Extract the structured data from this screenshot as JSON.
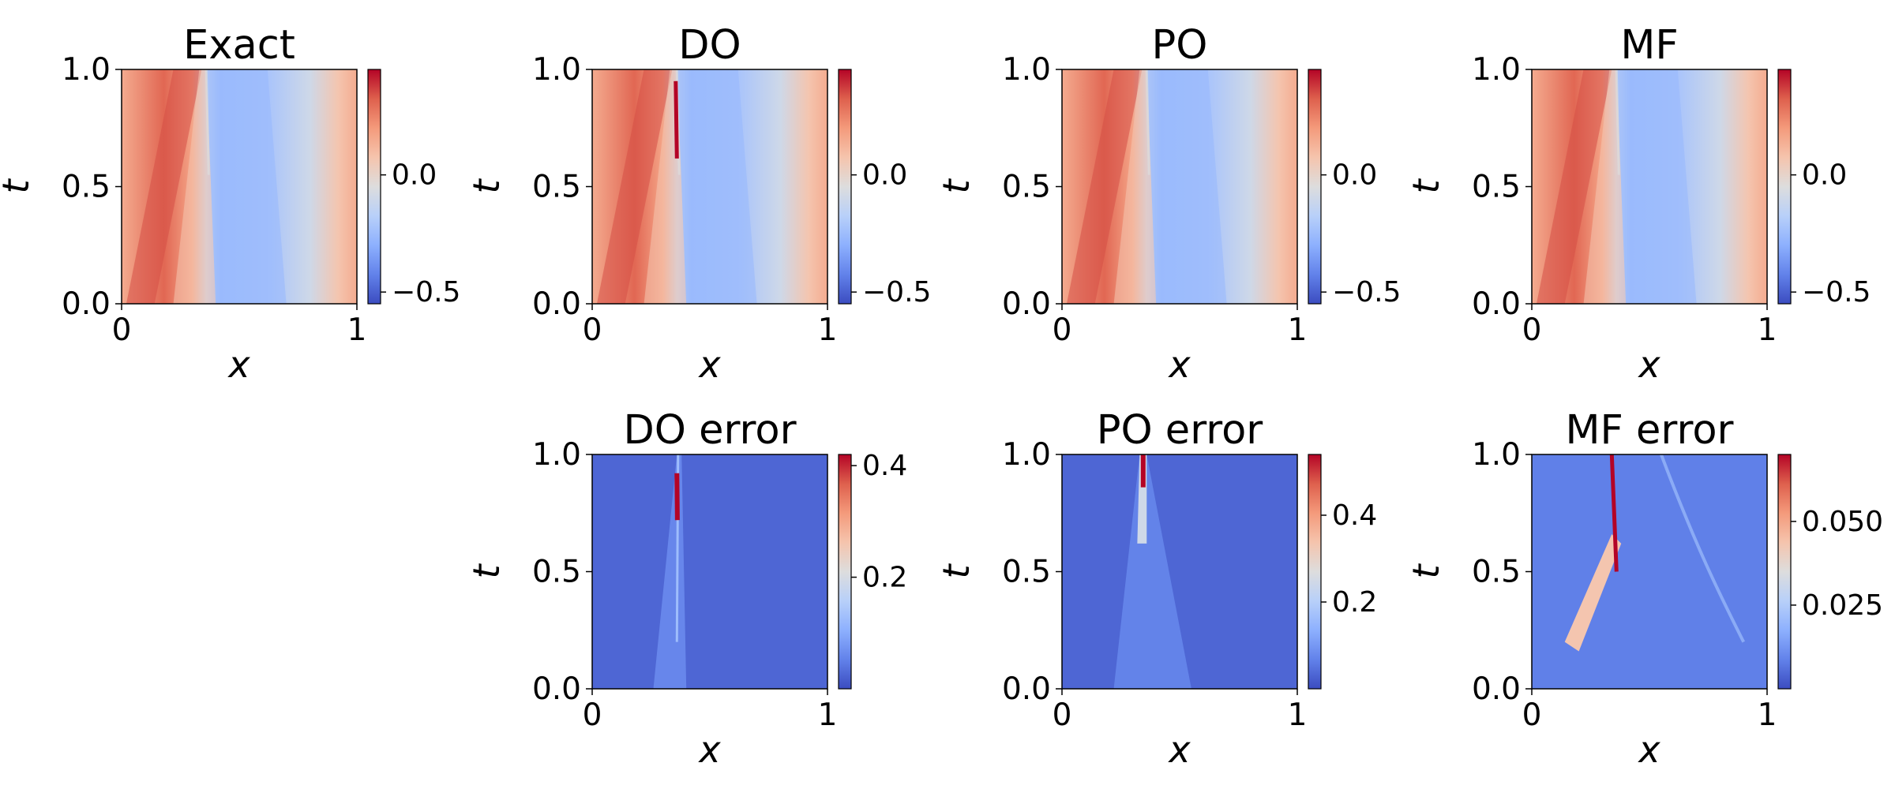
{
  "chart_data": [
    {
      "type": "heatmap",
      "title": "Exact",
      "field": "solution",
      "xlabel": "x",
      "ylabel": "t",
      "xlim": [
        0,
        1
      ],
      "ylim": [
        0,
        1
      ],
      "x_ticks": [
        "0",
        "1"
      ],
      "y_ticks": [
        "0.0",
        "0.5",
        "1.0"
      ],
      "colormap": "coolwarm",
      "colorbar": {
        "range": [
          -0.55,
          0.45
        ],
        "ticks": [
          {
            "value": 0.0,
            "label": "0.0"
          },
          {
            "value": -0.5,
            "label": "−0.5"
          }
        ]
      }
    },
    {
      "type": "heatmap",
      "title": "DO",
      "field": "solution",
      "xlabel": "x",
      "ylabel": "t",
      "xlim": [
        0,
        1
      ],
      "ylim": [
        0,
        1
      ],
      "x_ticks": [
        "0",
        "1"
      ],
      "y_ticks": [
        "0.0",
        "0.5",
        "1.0"
      ],
      "colormap": "coolwarm",
      "colorbar": {
        "range": [
          -0.55,
          0.45
        ],
        "ticks": [
          {
            "value": 0.0,
            "label": "0.0"
          },
          {
            "value": -0.5,
            "label": "−0.5"
          }
        ]
      }
    },
    {
      "type": "heatmap",
      "title": "PO",
      "field": "solution",
      "xlabel": "x",
      "ylabel": "t",
      "xlim": [
        0,
        1
      ],
      "ylim": [
        0,
        1
      ],
      "x_ticks": [
        "0",
        "1"
      ],
      "y_ticks": [
        "0.0",
        "0.5",
        "1.0"
      ],
      "colormap": "coolwarm",
      "colorbar": {
        "range": [
          -0.55,
          0.45
        ],
        "ticks": [
          {
            "value": 0.0,
            "label": "0.0"
          },
          {
            "value": -0.5,
            "label": "−0.5"
          }
        ]
      }
    },
    {
      "type": "heatmap",
      "title": "MF",
      "field": "solution",
      "xlabel": "x",
      "ylabel": "t",
      "xlim": [
        0,
        1
      ],
      "ylim": [
        0,
        1
      ],
      "x_ticks": [
        "0",
        "1"
      ],
      "y_ticks": [
        "0.0",
        "0.5",
        "1.0"
      ],
      "colormap": "coolwarm",
      "colorbar": {
        "range": [
          -0.55,
          0.45
        ],
        "ticks": [
          {
            "value": 0.0,
            "label": "0.0"
          },
          {
            "value": -0.5,
            "label": "−0.5"
          }
        ]
      }
    },
    {
      "type": "heatmap",
      "title": "DO error",
      "field": "error",
      "xlabel": "x",
      "ylabel": "t",
      "xlim": [
        0,
        1
      ],
      "ylim": [
        0,
        1
      ],
      "x_ticks": [
        "0",
        "1"
      ],
      "y_ticks": [
        "0.0",
        "0.5",
        "1.0"
      ],
      "colormap": "coolwarm",
      "colorbar": {
        "range": [
          0.0,
          0.42
        ],
        "ticks": [
          {
            "value": 0.4,
            "label": "0.4"
          },
          {
            "value": 0.2,
            "label": "0.2"
          }
        ]
      }
    },
    {
      "type": "heatmap",
      "title": "PO error",
      "field": "error",
      "xlabel": "x",
      "ylabel": "t",
      "xlim": [
        0,
        1
      ],
      "ylim": [
        0,
        1
      ],
      "x_ticks": [
        "0",
        "1"
      ],
      "y_ticks": [
        "0.0",
        "0.5",
        "1.0"
      ],
      "colormap": "coolwarm",
      "colorbar": {
        "range": [
          0.0,
          0.54
        ],
        "ticks": [
          {
            "value": 0.4,
            "label": "0.4"
          },
          {
            "value": 0.2,
            "label": "0.2"
          }
        ]
      }
    },
    {
      "type": "heatmap",
      "title": "MF error",
      "field": "error",
      "xlabel": "x",
      "ylabel": "t",
      "xlim": [
        0,
        1
      ],
      "ylim": [
        0,
        1
      ],
      "x_ticks": [
        "0",
        "1"
      ],
      "y_ticks": [
        "0.0",
        "0.5",
        "1.0"
      ],
      "colormap": "coolwarm",
      "colorbar": {
        "range": [
          0.0,
          0.07
        ],
        "ticks": [
          {
            "value": 0.05,
            "label": "0.050"
          },
          {
            "value": 0.025,
            "label": "0.025"
          }
        ]
      }
    }
  ]
}
